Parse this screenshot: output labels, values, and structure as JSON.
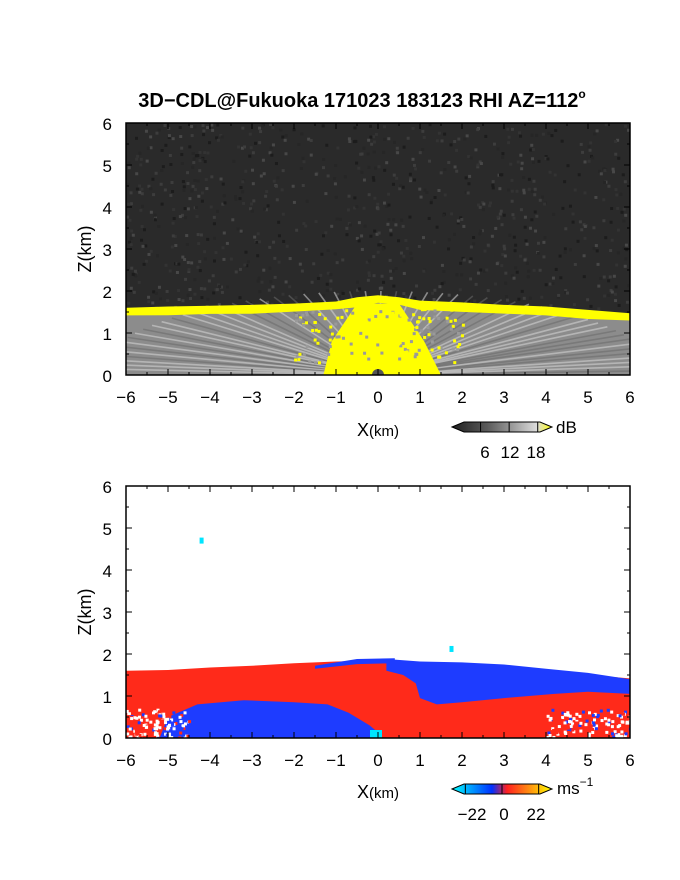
{
  "title": "3D−CDL@Fukuoka 171023 183123 RHI AZ=112",
  "title_sup": "o",
  "chart_data": [
    {
      "type": "heatmap",
      "name": "",
      "xlabel_main": "X",
      "xlabel_unit": "(km)",
      "ylabel": "Z(km)",
      "xlim": [
        -6,
        6
      ],
      "ylim": [
        0,
        6
      ],
      "x_ticks": [
        "−6",
        "−5",
        "−4",
        "−3",
        "−2",
        "−1",
        "0",
        "1",
        "2",
        "3",
        "4",
        "5",
        "6"
      ],
      "y_ticks": [
        "0",
        "1",
        "2",
        "3",
        "4",
        "5",
        "6"
      ],
      "colorbar": {
        "unit": "dB",
        "tick_labels": [
          "6",
          "12",
          "18"
        ],
        "tick_values": [
          6,
          12,
          18
        ],
        "range": [
          0,
          21
        ],
        "colors": [
          "#202020",
          "#5a5a5a",
          "#9a9a9a",
          "#dcdcdc",
          "#ffff00"
        ]
      },
      "boundary_layer_top_km": [
        [
          -6,
          1.55
        ],
        [
          -5,
          1.58
        ],
        [
          -4,
          1.6
        ],
        [
          -3,
          1.62
        ],
        [
          -2,
          1.65
        ],
        [
          -1,
          1.7
        ],
        [
          -0.5,
          1.8
        ],
        [
          0,
          1.85
        ],
        [
          0.5,
          1.8
        ],
        [
          1,
          1.72
        ],
        [
          2,
          1.68
        ],
        [
          3,
          1.62
        ],
        [
          4,
          1.58
        ],
        [
          5,
          1.5
        ],
        [
          6,
          1.42
        ]
      ]
    },
    {
      "type": "heatmap",
      "name": "",
      "xlabel_main": "X",
      "xlabel_unit": "(km)",
      "ylabel": "Z(km)",
      "xlim": [
        -6,
        6
      ],
      "ylim": [
        0,
        6
      ],
      "x_ticks": [
        "−6",
        "−5",
        "−4",
        "−3",
        "−2",
        "−1",
        "0",
        "1",
        "2",
        "3",
        "4",
        "5",
        "6"
      ],
      "y_ticks": [
        "0",
        "1",
        "2",
        "3",
        "4",
        "5",
        "6"
      ],
      "colorbar": {
        "unit": "ms",
        "unit_sup": "−1",
        "tick_labels": [
          "−22",
          "0",
          "22"
        ],
        "tick_values": [
          -22,
          0,
          22
        ],
        "range": [
          -30,
          30
        ],
        "colors": [
          "#00ffff",
          "#0030ff",
          "#ff2020",
          "#ffff00"
        ]
      },
      "isolated_points": [
        [
          -4.2,
          4.7
        ],
        [
          1.75,
          2.12
        ]
      ]
    }
  ]
}
